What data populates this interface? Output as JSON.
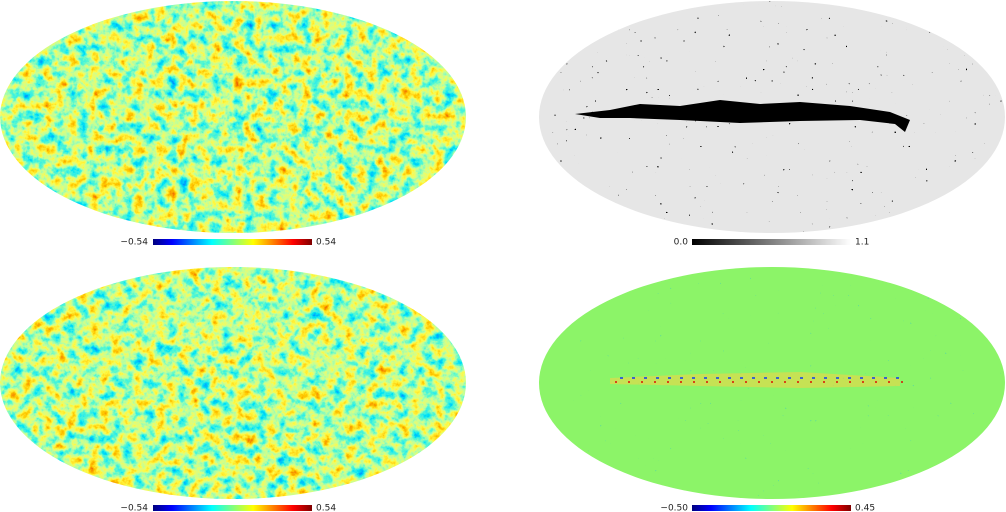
{
  "panels": [
    {
      "colorbar": {
        "min": "−0.54",
        "max": "0.54"
      }
    },
    {
      "colorbar": {
        "min": "0.0",
        "max": "1.1"
      }
    },
    {
      "colorbar": {
        "min": "−0.54",
        "max": "0.54"
      }
    },
    {
      "colorbar": {
        "min": "−0.50",
        "max": "0.45"
      }
    }
  ]
}
